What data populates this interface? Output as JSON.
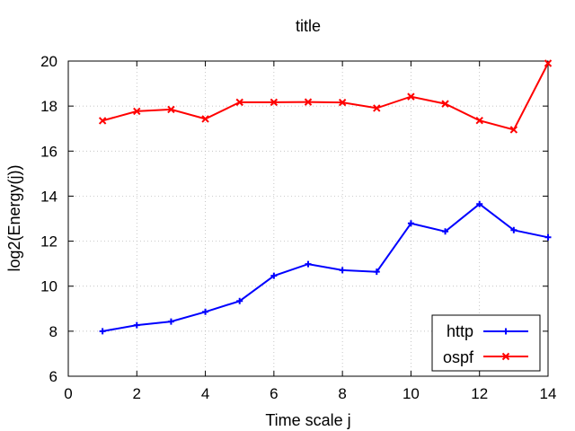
{
  "chart_data": {
    "type": "line",
    "title": "title",
    "xlabel": "Time scale j",
    "ylabel": "log2(Energy(j))",
    "xlim": [
      0,
      14
    ],
    "ylim": [
      6,
      20
    ],
    "xticks": [
      0,
      2,
      4,
      6,
      8,
      10,
      12,
      14
    ],
    "yticks": [
      6,
      8,
      10,
      12,
      14,
      16,
      18,
      20
    ],
    "grid": true,
    "legend_position": "bottom-right",
    "series": [
      {
        "name": "http",
        "color": "#0000ff",
        "marker": "plus",
        "x": [
          1,
          2,
          3,
          4,
          5,
          6,
          7,
          8,
          9,
          10,
          11,
          12,
          13,
          14
        ],
        "y": [
          8.0,
          8.27,
          8.43,
          8.86,
          9.34,
          10.46,
          10.98,
          10.71,
          10.64,
          12.79,
          12.43,
          13.65,
          12.49,
          12.17
        ]
      },
      {
        "name": "ospf",
        "color": "#ff0000",
        "marker": "cross",
        "x": [
          1,
          2,
          3,
          4,
          5,
          6,
          7,
          8,
          9,
          10,
          11,
          12,
          13,
          14
        ],
        "y": [
          17.35,
          17.77,
          17.85,
          17.43,
          18.17,
          18.17,
          18.18,
          18.16,
          17.91,
          18.42,
          18.1,
          17.36,
          16.95,
          19.9
        ]
      }
    ]
  }
}
